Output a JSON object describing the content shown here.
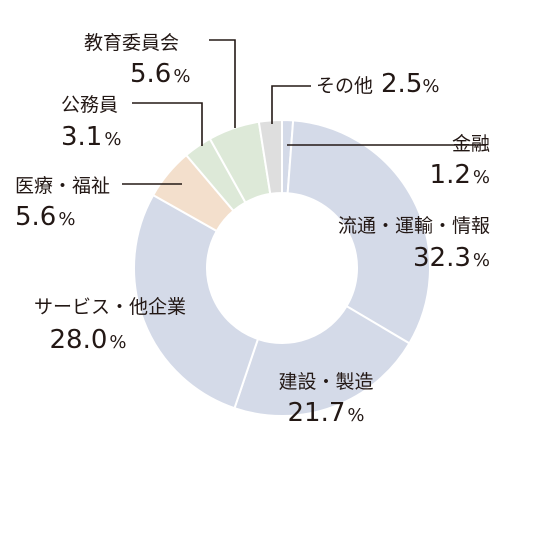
{
  "chart_data": {
    "type": "pie",
    "variant": "donut",
    "title": "",
    "slices": [
      {
        "label": "金融",
        "value": 1.2,
        "color": "#d4dae8"
      },
      {
        "label": "流通・運輸・情報",
        "value": 32.3,
        "color": "#d4dae8"
      },
      {
        "label": "建設・製造",
        "value": 21.7,
        "color": "#d4dae8"
      },
      {
        "label": "サービス・他企業",
        "value": 28.0,
        "color": "#d4dae8"
      },
      {
        "label": "医療・福祉",
        "value": 5.6,
        "color": "#f3dfcc"
      },
      {
        "label": "公務員",
        "value": 3.1,
        "color": "#dde9d8"
      },
      {
        "label": "教育委員会",
        "value": 5.6,
        "color": "#dde9d8"
      },
      {
        "label": "その他",
        "value": 2.5,
        "color": "#dedede"
      }
    ],
    "value_labels": [
      "1.2",
      "32.3",
      "21.7",
      "28.0",
      "5.6",
      "3.1",
      "5.6",
      "2.5"
    ],
    "unit": "%",
    "start": "12 o'clock, clockwise"
  }
}
